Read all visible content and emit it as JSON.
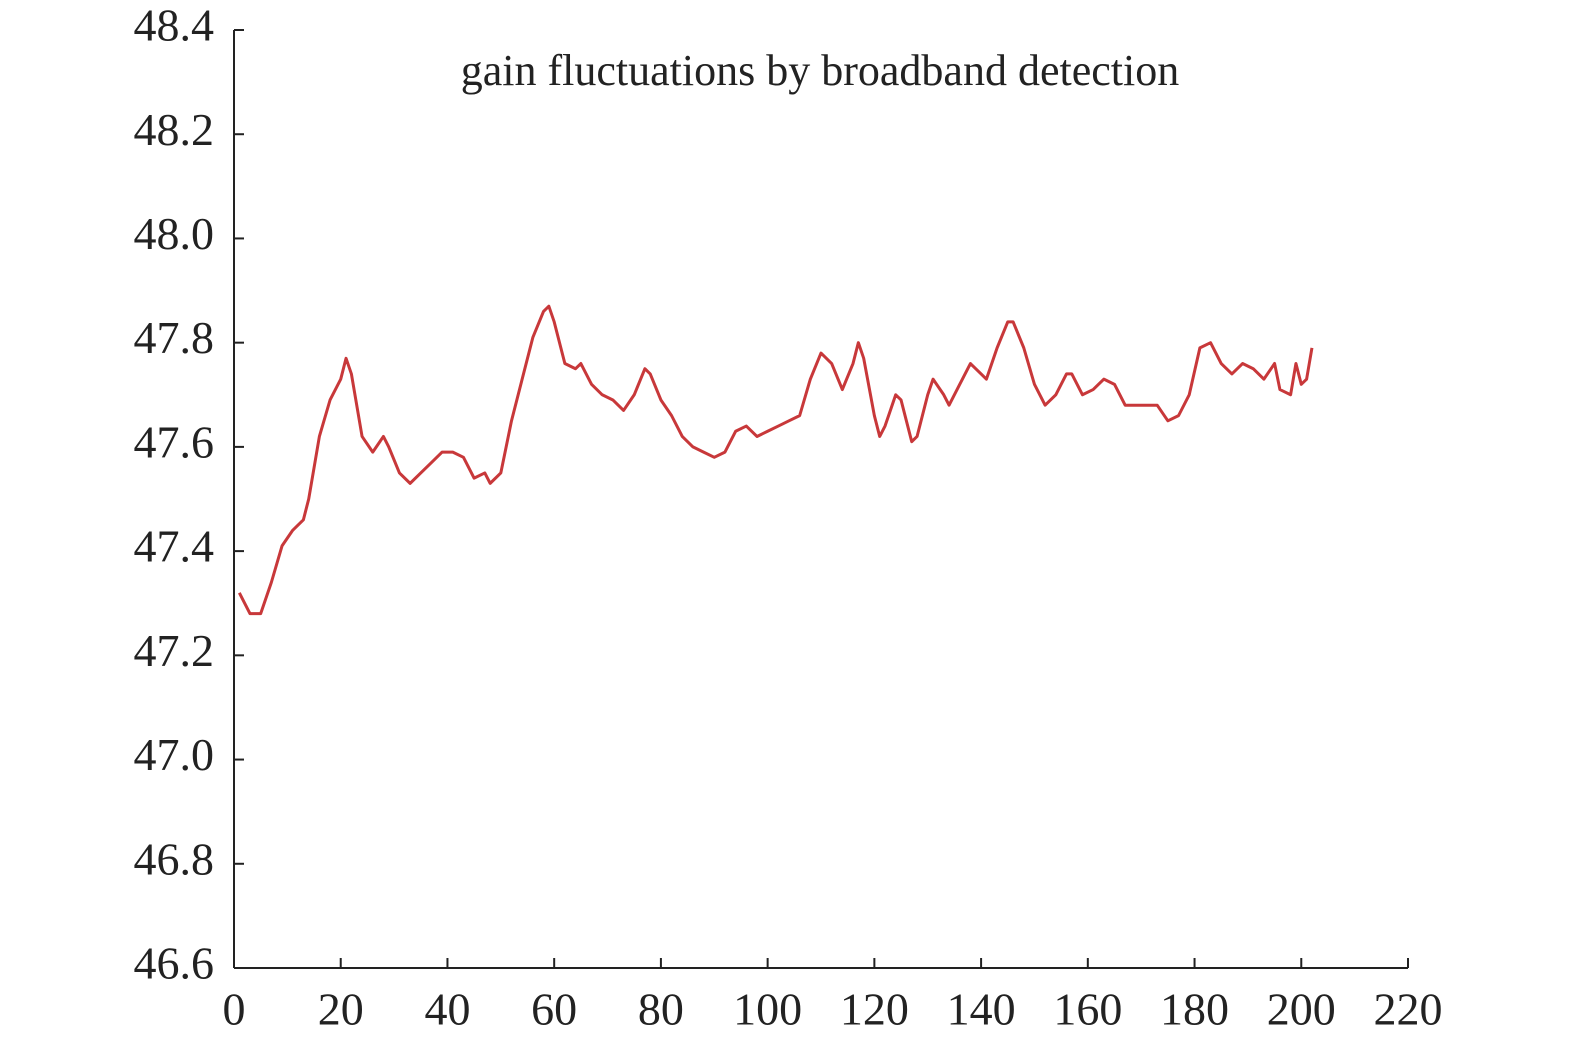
{
  "chart_data": {
    "type": "line",
    "title": "gain fluctuations by broadband detection",
    "x": [
      1,
      3,
      5,
      7,
      9,
      11,
      13,
      14,
      16,
      18,
      20,
      21,
      22,
      24,
      26,
      28,
      29,
      31,
      33,
      35,
      37,
      39,
      41,
      43,
      45,
      47,
      48,
      50,
      52,
      54,
      56,
      58,
      59,
      60,
      62,
      64,
      65,
      67,
      69,
      71,
      73,
      75,
      77,
      78,
      80,
      82,
      84,
      86,
      88,
      90,
      92,
      94,
      96,
      98,
      100,
      102,
      104,
      106,
      108,
      110,
      112,
      114,
      116,
      117,
      118,
      120,
      121,
      122,
      124,
      125,
      127,
      128,
      130,
      131,
      133,
      134,
      136,
      138,
      140,
      141,
      143,
      145,
      146,
      148,
      150,
      152,
      154,
      156,
      157,
      159,
      161,
      163,
      165,
      167,
      170,
      173,
      175,
      177,
      179,
      181,
      183,
      185,
      187,
      189,
      191,
      193,
      195,
      196,
      198,
      199,
      200,
      201,
      202
    ],
    "series": [
      {
        "name": "gain",
        "color": "#c8383a",
        "values": [
          47.32,
          47.28,
          47.28,
          47.34,
          47.41,
          47.44,
          47.46,
          47.5,
          47.62,
          47.69,
          47.73,
          47.77,
          47.74,
          47.62,
          47.59,
          47.62,
          47.6,
          47.55,
          47.53,
          47.55,
          47.57,
          47.59,
          47.59,
          47.58,
          47.54,
          47.55,
          47.53,
          47.55,
          47.65,
          47.73,
          47.81,
          47.86,
          47.87,
          47.84,
          47.76,
          47.75,
          47.76,
          47.72,
          47.7,
          47.69,
          47.67,
          47.7,
          47.75,
          47.74,
          47.69,
          47.66,
          47.62,
          47.6,
          47.59,
          47.58,
          47.59,
          47.63,
          47.64,
          47.62,
          47.63,
          47.64,
          47.65,
          47.66,
          47.73,
          47.78,
          47.76,
          47.71,
          47.76,
          47.8,
          47.77,
          47.66,
          47.62,
          47.64,
          47.7,
          47.69,
          47.61,
          47.62,
          47.7,
          47.73,
          47.7,
          47.68,
          47.72,
          47.76,
          47.74,
          47.73,
          47.79,
          47.84,
          47.84,
          47.79,
          47.72,
          47.68,
          47.7,
          47.74,
          47.74,
          47.7,
          47.71,
          47.73,
          47.72,
          47.68,
          47.68,
          47.68,
          47.65,
          47.66,
          47.7,
          47.79,
          47.8,
          47.76,
          47.74,
          47.76,
          47.75,
          47.73,
          47.76,
          47.71,
          47.7,
          47.76,
          47.72,
          47.73,
          47.79
        ]
      }
    ],
    "xlim": [
      0,
      220
    ],
    "xticks": [
      0,
      20,
      40,
      60,
      80,
      100,
      120,
      140,
      160,
      180,
      200,
      220
    ],
    "ylim": [
      46.6,
      48.4
    ],
    "yticks": [
      46.6,
      46.8,
      {
        "value": 47,
        "label": "47.0"
      },
      47.2,
      47.4,
      47.6,
      47.8,
      {
        "value": 48,
        "label": "48.0"
      },
      48.2,
      48.4
    ],
    "grid": false
  }
}
